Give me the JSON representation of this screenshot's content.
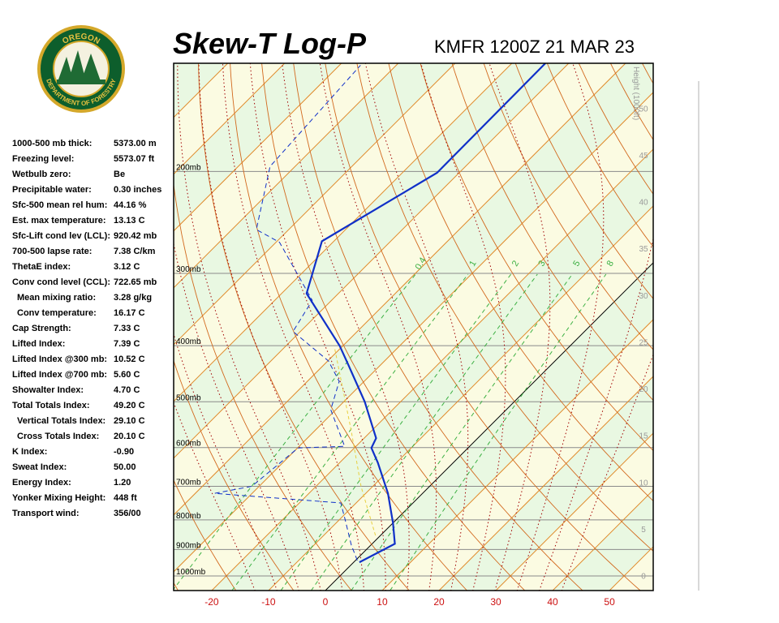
{
  "logo": {
    "top": "OREGON",
    "bottom": "DEPARTMENT OF FORESTRY"
  },
  "stats": [
    {
      "label": "1000-500 mb thick:",
      "value": "5373.00 m"
    },
    {
      "label": "Freezing level:",
      "value": "5573.07 ft"
    },
    {
      "label": "Wetbulb zero:",
      "value": "Be"
    },
    {
      "label": "Precipitable water:",
      "value": "0.30 inches"
    },
    {
      "label": "Sfc-500 mean rel hum:",
      "value": "44.16 %"
    },
    {
      "label": "Est. max temperature:",
      "value": "13.13 C"
    },
    {
      "label": "Sfc-Lift cond lev (LCL):",
      "value": "920.42 mb"
    },
    {
      "label": "700-500 lapse rate:",
      "value": "7.38 C/km"
    },
    {
      "label": "ThetaE index:",
      "value": "3.12 C"
    },
    {
      "label": "Conv cond level (CCL):",
      "value": "722.65 mb"
    },
    {
      "label": "Mean mixing ratio:",
      "value": "3.28 g/kg"
    },
    {
      "label": "Conv temperature:",
      "value": "16.17 C"
    },
    {
      "label": "Cap Strength:",
      "value": "7.33 C"
    },
    {
      "label": "Lifted Index:",
      "value": "7.39 C"
    },
    {
      "label": "Lifted Index @300 mb:",
      "value": "10.52 C"
    },
    {
      "label": "Lifted Index @700 mb:",
      "value": "5.60 C"
    },
    {
      "label": "Showalter Index:",
      "value": "4.70 C"
    },
    {
      "label": "Total Totals Index:",
      "value": "49.20 C"
    },
    {
      "label": "Vertical Totals Index:",
      "value": "29.10 C"
    },
    {
      "label": "Cross Totals Index:",
      "value": "20.10 C"
    },
    {
      "label": "K Index:",
      "value": "-0.90"
    },
    {
      "label": "Sweat Index:",
      "value": "50.00"
    },
    {
      "label": "Energy Index:",
      "value": "1.20"
    },
    {
      "label": "Yonker Mixing Height:",
      "value": "448 ft"
    },
    {
      "label": "Transport wind:",
      "value": "356/00"
    }
  ],
  "chart_data": {
    "type": "skewt",
    "title": "Skew-T Log-P",
    "subtitle": "KMFR 1200Z 21 MAR 23",
    "xlim": [
      -26.7,
      57.7
    ],
    "xticks": [
      -20,
      -10,
      0,
      10,
      20,
      30,
      40,
      50
    ],
    "ylim": [
      1060,
      130
    ],
    "log_y": true,
    "yticks": [
      {
        "value": 200,
        "label": "200mb"
      },
      {
        "value": 300,
        "label": "300mb"
      },
      {
        "value": 400,
        "label": "400mb"
      },
      {
        "value": 500,
        "label": "500mb"
      },
      {
        "value": 600,
        "label": "600mb"
      },
      {
        "value": 700,
        "label": "700mb"
      },
      {
        "value": 800,
        "label": "800mb"
      },
      {
        "value": 900,
        "label": "900mb"
      },
      {
        "value": 1000,
        "label": "1000mb"
      }
    ],
    "height_label": "Height (1000ft)",
    "height_lim": [
      -1.6,
      54.8
    ],
    "height_ticks": [
      0,
      5,
      10,
      15,
      20,
      25,
      30,
      35,
      40,
      45,
      50
    ],
    "mixing_ratios": [
      0.4,
      1,
      2,
      3,
      5,
      8
    ],
    "temperature": {
      "color": "#1030c8",
      "pressure": [
        947,
        880,
        810,
        720,
        637,
        601,
        578,
        500,
        429,
        400,
        325,
        264,
        201,
        130
      ],
      "values": [
        1.0,
        4.0,
        0.0,
        -6.1,
        -13.3,
        -17.0,
        -17.9,
        -26.3,
        -36.1,
        -40.6,
        -55.6,
        -62.1,
        -53.9,
        -54.1
      ]
    },
    "dewpoint": {
      "color": "#1030c8",
      "pressure": [
        940,
        885,
        798,
        748,
        720,
        700,
        601,
        597,
        516,
        461,
        425,
        378,
        334,
        265,
        252,
        196,
        131
      ],
      "values": [
        0.3,
        -3.4,
        -9.1,
        -12.7,
        -36.6,
        -31.3,
        -29.9,
        -22.0,
        -30.9,
        -34.4,
        -39.9,
        -51.3,
        -53.4,
        -69.4,
        -75.7,
        -84.4,
        -86.3
      ]
    },
    "parcel": {
      "color": "#e8d040",
      "pressure": [
        851,
        701,
        560,
        402
      ],
      "values": [
        -0.9,
        -12.0,
        -23.7,
        -41.3
      ]
    }
  }
}
